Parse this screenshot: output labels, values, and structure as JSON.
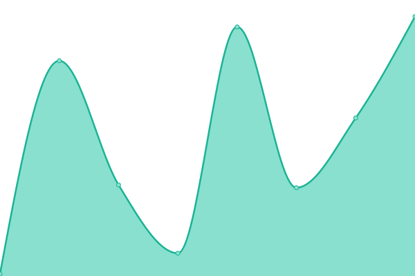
{
  "chart_data": {
    "type": "area",
    "categories": [
      null,
      null,
      null,
      null,
      null,
      null,
      null,
      null
    ],
    "values": [
      3,
      312,
      132,
      33,
      361,
      128,
      229,
      376
    ],
    "ylim": [
      0,
      400
    ],
    "color": "#1ab394",
    "fill_color": "#89e0cf"
  }
}
